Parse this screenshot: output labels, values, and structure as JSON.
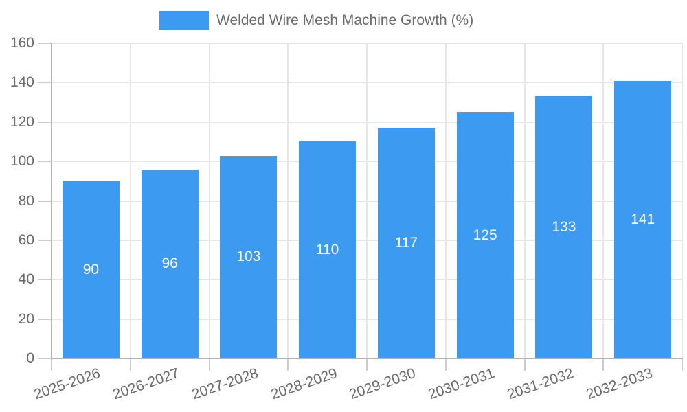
{
  "legend": {
    "label": "Welded Wire Mesh Machine Growth (%)"
  },
  "chart_data": {
    "type": "bar",
    "title": "",
    "categories": [
      "2025-2026",
      "2026-2027",
      "2027-2028",
      "2028-2029",
      "2029-2030",
      "2030-2031",
      "2031-2032",
      "2032-2033"
    ],
    "values": [
      90,
      96,
      103,
      110,
      117,
      125,
      133,
      141
    ],
    "series_name": "Welded Wire Mesh Machine Growth (%)",
    "legend_entries": [
      "Welded Wire Mesh Machine Growth (%)"
    ],
    "legend_position": "top-center",
    "xlabel": "",
    "ylabel": "",
    "ylim": [
      0,
      160
    ],
    "yticks": [
      0,
      20,
      40,
      60,
      80,
      100,
      120,
      140,
      160
    ],
    "grid": true,
    "bar_color": "#3c9bf0",
    "bar_label_color": "#ffffff",
    "axis_text_color": "#6b6b6b",
    "grid_color": "#e6e6e6",
    "axis_line_color": "#b3b3b3",
    "x_label_rotation_deg": -19
  }
}
